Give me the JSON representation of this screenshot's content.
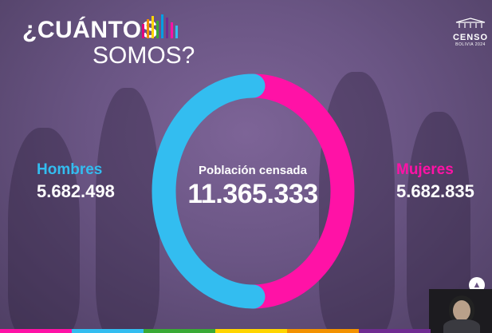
{
  "title": {
    "line1": "¿CUÁNTOS",
    "line2": "SOMOS?"
  },
  "logo": {
    "word": "CENSO",
    "sub": "BOLIVIA 2024"
  },
  "men": {
    "label": "Hombres",
    "value": "5.682.498",
    "color": "#33bdf0"
  },
  "women": {
    "label": "Mujeres",
    "value": "5.682.835",
    "color": "#ff12a6"
  },
  "total": {
    "label": "Población censada",
    "value": "11.365.333"
  },
  "chart_data": {
    "type": "pie",
    "categories": [
      "Hombres",
      "Mujeres"
    ],
    "values": [
      5682498,
      5682835
    ],
    "colors": [
      "#33bdf0",
      "#ff12a6"
    ]
  },
  "colors": {
    "title_bars": [
      "#e5007e",
      "#f39200",
      "#ffd500",
      "#3aaa35",
      "#009fe3",
      "#6f2c91",
      "#ff12a6",
      "#33bdf0"
    ],
    "stripe": [
      "#ff12a6",
      "#33bdf0",
      "#3aaa35",
      "#ffd500",
      "#f39200",
      "#6f2c91"
    ]
  },
  "icons": {
    "nav": "chevron-up-icon",
    "webcam": "webcam-video"
  }
}
